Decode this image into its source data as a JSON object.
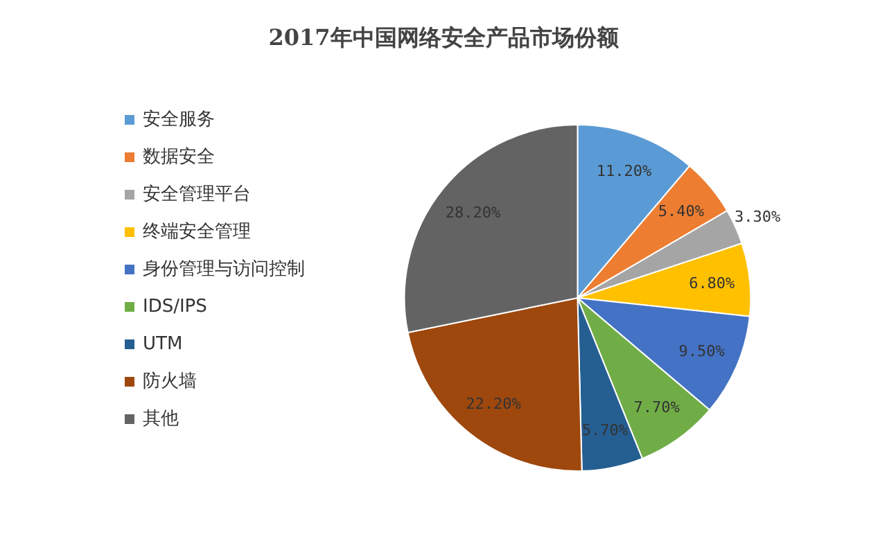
{
  "chart_data": {
    "type": "pie",
    "title": "2017年中国网络安全产品市场份额",
    "categories": [
      "安全服务",
      "数据安全",
      "安全管理平台",
      "终端安全管理",
      "身份管理与访问控制",
      "IDS/IPS",
      "UTM",
      "防火墙",
      "其他"
    ],
    "values": [
      11.2,
      5.4,
      3.3,
      6.8,
      9.5,
      7.7,
      5.7,
      22.2,
      28.2
    ],
    "value_labels": [
      "11.20%",
      "5.40%",
      "3.30%",
      "6.80%",
      "9.50%",
      "7.70%",
      "5.70%",
      "22.20%",
      "28.20%"
    ],
    "colors": [
      "#5b9bd5",
      "#ed7d31",
      "#a5a5a5",
      "#ffc000",
      "#4472c4",
      "#70ad47",
      "#255e91",
      "#9e480e",
      "#636363"
    ],
    "legend": "left"
  }
}
